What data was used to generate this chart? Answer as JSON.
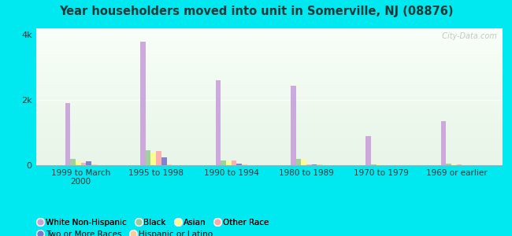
{
  "title": "Year householders moved into unit in Somerville, NJ (08876)",
  "categories": [
    "1999 to March\n2000",
    "1995 to 1998",
    "1990 to 1994",
    "1980 to 1989",
    "1970 to 1979",
    "1969 or earlier"
  ],
  "series_order": [
    "White Non-Hispanic",
    "Black",
    "Asian",
    "Other Race",
    "Two or More Races",
    "Hispanic or Latino"
  ],
  "series": {
    "White Non-Hispanic": [
      1900,
      3800,
      2600,
      2450,
      900,
      1350
    ],
    "Black": [
      200,
      450,
      150,
      200,
      20,
      50
    ],
    "Asian": [
      130,
      380,
      120,
      160,
      15,
      25
    ],
    "Other Race": [
      80,
      430,
      150,
      35,
      12,
      15
    ],
    "Two or More Races": [
      120,
      230,
      55,
      30,
      10,
      10
    ],
    "Hispanic or Latino": [
      20,
      20,
      20,
      15,
      8,
      12
    ]
  },
  "colors": {
    "White Non-Hispanic": "#c9a0dc",
    "Black": "#99cc99",
    "Asian": "#ffff88",
    "Other Race": "#ffaaaa",
    "Two or More Races": "#7777cc",
    "Hispanic or Latino": "#ffcc99"
  },
  "ylim": [
    0,
    4200
  ],
  "yticks": [
    0,
    2000,
    4000
  ],
  "ytick_labels": [
    "0",
    "2k",
    "4k"
  ],
  "plot_bg_top": "#e8f5e9",
  "plot_bg_bottom": "#f0fff0",
  "outer_background": "#00e8f0",
  "bar_width": 0.07,
  "watermark": "  City-Data.com",
  "title_color": "#1a3a3a",
  "legend": [
    {
      "label": "White Non-Hispanic",
      "color": "#c9a0dc"
    },
    {
      "label": "Black",
      "color": "#99cc99"
    },
    {
      "label": "Asian",
      "color": "#ffff88"
    },
    {
      "label": "Other Race",
      "color": "#ffaaaa"
    },
    {
      "label": "Two or More Races",
      "color": "#7777cc"
    },
    {
      "label": "Hispanic or Latino",
      "color": "#ffcc99"
    }
  ]
}
